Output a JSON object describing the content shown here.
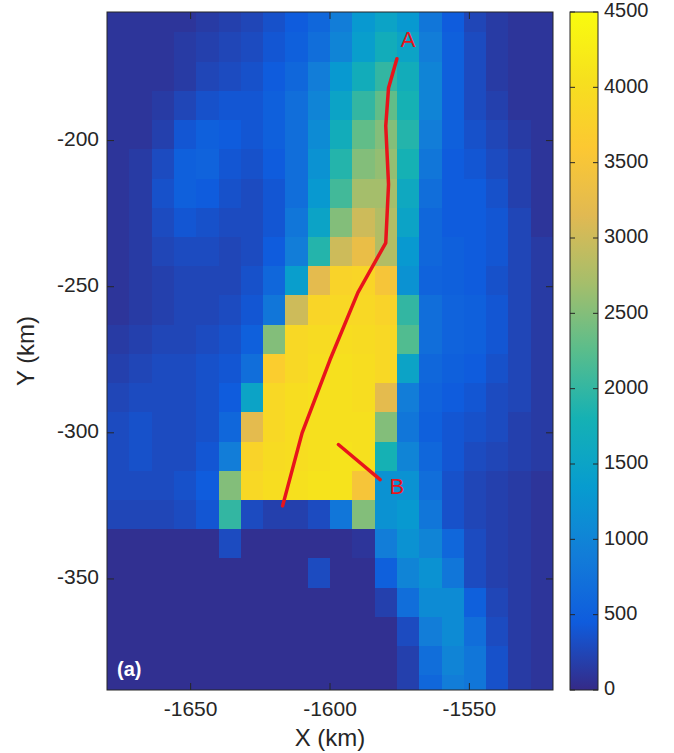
{
  "chart_data": {
    "type": "heatmap",
    "x_label": "X (km)",
    "y_label": "Y (km)",
    "panel_label": "(a)",
    "xlim": [
      -1680,
      -1520
    ],
    "ylim": [
      -388,
      -156
    ],
    "xticks": [
      -1650,
      -1600,
      -1550
    ],
    "yticks": [
      -350,
      -300,
      -250,
      -200
    ],
    "x": [
      -1676,
      -1668,
      -1660,
      -1652,
      -1644,
      -1636,
      -1628,
      -1620,
      -1612,
      -1604,
      -1596,
      -1588,
      -1580,
      -1572,
      -1564,
      -1556,
      -1548,
      -1540,
      -1532,
      -1524
    ],
    "y": [
      -158,
      -168,
      -178,
      -188,
      -198,
      -208,
      -218,
      -228,
      -238,
      -248,
      -258,
      -268,
      -278,
      -288,
      -298,
      -308,
      -318,
      -328,
      -338,
      -348,
      -358,
      -368,
      -378,
      -388
    ],
    "cells": [
      [
        100,
        100,
        100,
        100,
        150,
        200,
        250,
        350,
        450,
        600,
        900,
        1300,
        1500,
        1300,
        800,
        450,
        250,
        150,
        100,
        100
      ],
      [
        100,
        100,
        100,
        150,
        200,
        250,
        300,
        400,
        500,
        700,
        1000,
        1400,
        1700,
        1500,
        900,
        500,
        300,
        150,
        100,
        100
      ],
      [
        100,
        100,
        100,
        150,
        250,
        300,
        350,
        450,
        600,
        900,
        1300,
        1700,
        2000,
        1700,
        1000,
        500,
        300,
        150,
        100,
        100
      ],
      [
        100,
        100,
        150,
        250,
        350,
        400,
        400,
        500,
        700,
        1000,
        1500,
        2000,
        2300,
        1800,
        1000,
        500,
        300,
        200,
        100,
        100
      ],
      [
        100,
        100,
        200,
        400,
        500,
        450,
        400,
        500,
        700,
        1100,
        1700,
        2300,
        2500,
        1900,
        900,
        500,
        350,
        250,
        150,
        100
      ],
      [
        100,
        150,
        300,
        500,
        550,
        400,
        350,
        450,
        700,
        1200,
        1900,
        2500,
        2600,
        1800,
        800,
        450,
        400,
        300,
        200,
        100
      ],
      [
        100,
        150,
        350,
        500,
        450,
        350,
        300,
        400,
        700,
        1300,
        2100,
        2700,
        2700,
        1600,
        700,
        450,
        450,
        350,
        200,
        100
      ],
      [
        100,
        150,
        300,
        400,
        350,
        300,
        300,
        400,
        800,
        1500,
        2500,
        3000,
        2800,
        1500,
        600,
        450,
        450,
        400,
        250,
        100
      ],
      [
        100,
        150,
        250,
        300,
        300,
        250,
        300,
        450,
        900,
        1900,
        3000,
        3300,
        2800,
        1300,
        600,
        500,
        450,
        400,
        250,
        150
      ],
      [
        100,
        150,
        200,
        250,
        250,
        250,
        350,
        600,
        1400,
        3200,
        3800,
        3850,
        3500,
        1200,
        550,
        500,
        450,
        350,
        250,
        150
      ],
      [
        100,
        150,
        200,
        250,
        250,
        300,
        400,
        800,
        3000,
        3850,
        3900,
        3900,
        3800,
        2000,
        700,
        550,
        500,
        400,
        250,
        150
      ],
      [
        150,
        200,
        250,
        250,
        300,
        350,
        500,
        2500,
        3900,
        3950,
        4000,
        3950,
        3900,
        2200,
        700,
        550,
        500,
        400,
        250,
        150
      ],
      [
        200,
        250,
        300,
        300,
        350,
        400,
        700,
        3700,
        3900,
        4000,
        4050,
        4000,
        3900,
        1500,
        600,
        500,
        450,
        350,
        250,
        150
      ],
      [
        250,
        300,
        300,
        300,
        350,
        450,
        1500,
        3900,
        4000,
        4050,
        4050,
        4000,
        3200,
        900,
        550,
        450,
        400,
        300,
        250,
        150
      ],
      [
        300,
        350,
        300,
        300,
        350,
        600,
        3200,
        3900,
        4000,
        4050,
        4050,
        4050,
        2500,
        800,
        500,
        400,
        350,
        300,
        200,
        150
      ],
      [
        300,
        350,
        300,
        300,
        400,
        900,
        3800,
        3950,
        4000,
        4050,
        4100,
        4050,
        1800,
        1000,
        600,
        400,
        300,
        250,
        200,
        150
      ],
      [
        300,
        300,
        300,
        350,
        450,
        2500,
        3900,
        4000,
        4050,
        4100,
        4100,
        3500,
        1200,
        1200,
        700,
        350,
        250,
        200,
        150,
        100
      ],
      [
        250,
        250,
        250,
        300,
        400,
        2000,
        300,
        200,
        200,
        300,
        800,
        2500,
        1200,
        1300,
        800,
        350,
        250,
        200,
        150,
        100
      ],
      [
        50,
        50,
        50,
        50,
        50,
        300,
        50,
        50,
        50,
        50,
        50,
        100,
        900,
        1200,
        1000,
        600,
        300,
        200,
        150,
        100
      ],
      [
        50,
        50,
        50,
        50,
        50,
        50,
        50,
        50,
        50,
        300,
        50,
        50,
        500,
        1000,
        1200,
        800,
        300,
        200,
        150,
        100
      ],
      [
        50,
        50,
        50,
        50,
        50,
        50,
        50,
        50,
        50,
        50,
        50,
        50,
        200,
        700,
        1100,
        1100,
        500,
        250,
        150,
        100
      ],
      [
        50,
        50,
        50,
        50,
        50,
        50,
        50,
        50,
        50,
        50,
        50,
        50,
        50,
        300,
        900,
        1100,
        700,
        300,
        150,
        100
      ],
      [
        50,
        50,
        50,
        50,
        50,
        50,
        50,
        50,
        50,
        50,
        50,
        50,
        50,
        200,
        700,
        1000,
        800,
        350,
        150,
        100
      ],
      [
        50,
        50,
        50,
        50,
        50,
        50,
        50,
        50,
        50,
        50,
        50,
        50,
        50,
        200,
        600,
        900,
        800,
        350,
        150,
        100
      ]
    ],
    "colorbar": {
      "range": [
        0,
        4500
      ],
      "ticks": [
        0,
        500,
        1000,
        1500,
        2000,
        2500,
        3000,
        3500,
        4000,
        4500
      ]
    },
    "annotations": [
      {
        "text": "A",
        "color": "#e8141b",
        "x": [
          -1576,
          -1579,
          -1580,
          -1579,
          -1580,
          -1590,
          -1600,
          -1610,
          -1617
        ],
        "y": [
          -172,
          -182,
          -195,
          -215,
          -235,
          -252,
          -275,
          -300,
          -325
        ],
        "label_at": [
          -1572,
          -166
        ]
      },
      {
        "text": "B",
        "color": "#e8141b",
        "x": [
          -1597,
          -1582
        ],
        "y": [
          -304,
          -316
        ],
        "label_at": [
          -1576,
          -319
        ]
      }
    ]
  }
}
